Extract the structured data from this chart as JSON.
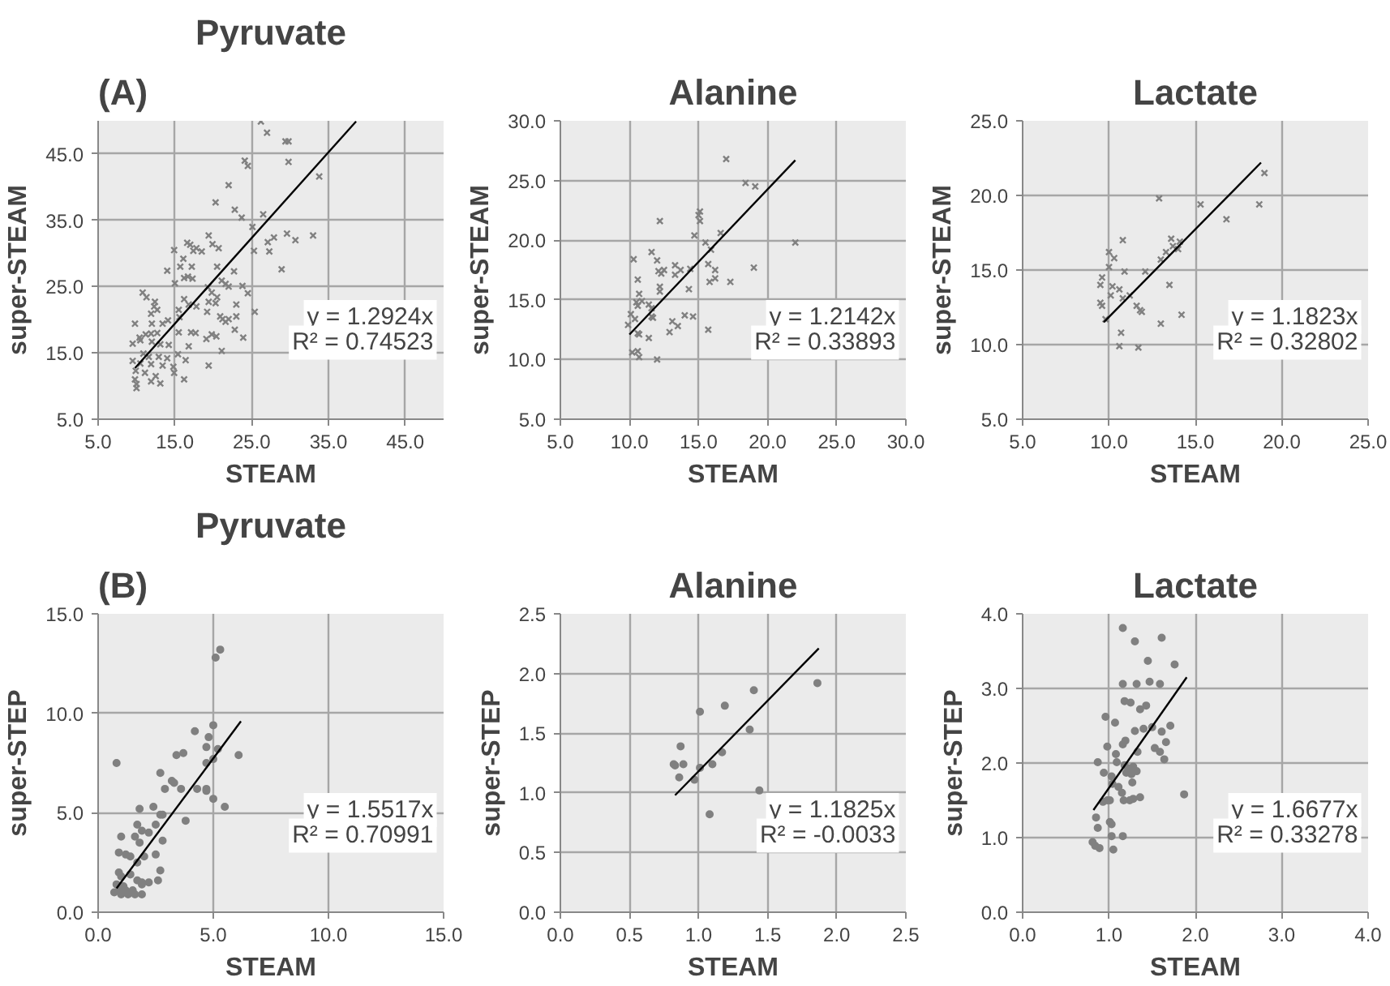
{
  "chart_data": [
    {
      "type": "scatter",
      "title": "Pyruvate",
      "xlabel": "STEAM",
      "ylabel": "super-STEAM",
      "marker": "cross",
      "grid": true,
      "xlim": [
        5,
        50
      ],
      "ylim": [
        5,
        50
      ],
      "xticks": [
        {
          "value": 5,
          "label": "5.0"
        },
        {
          "value": 15,
          "label": "15.0"
        },
        {
          "value": 25,
          "label": "25.0"
        },
        {
          "value": 35,
          "label": "35.0"
        },
        {
          "value": 45,
          "label": "45.0"
        }
      ],
      "yticks": [
        {
          "value": 5,
          "label": "5.0"
        },
        {
          "value": 15,
          "label": "15.0"
        },
        {
          "value": 25,
          "label": "25.0"
        },
        {
          "value": 35,
          "label": "35.0"
        },
        {
          "value": 45,
          "label": "45.0"
        }
      ],
      "annotations": [
        "(A)",
        "y = 1.2924x\nR² = 0.74523"
      ],
      "series": [
        {
          "color": "#808080",
          "x": [
            26.2,
            27.0,
            29.4,
            29.8,
            24.1,
            24.5,
            29.8,
            33.8,
            22.0,
            20.3,
            22.8,
            23.7,
            26.5,
            25.1,
            19.4,
            29.6,
            27.9,
            27.1,
            30.7,
            33.0,
            16.6,
            17.0,
            17.8,
            18.5,
            17.4,
            19.9,
            20.7,
            14.9,
            25.3,
            27.3,
            16.1,
            28.9,
            15.7,
            17.2,
            20.5,
            14.0,
            22.7,
            16.2,
            16.7,
            17.3,
            15.0,
            21.1,
            21.6,
            22.0,
            23.8,
            24.5,
            19.3,
            19.8,
            20.5,
            10.8,
            11.3,
            12.4,
            12.3,
            23.0,
            25.4,
            16.2,
            16.8,
            17.8,
            19.4,
            20.3,
            19.2,
            12.7,
            11.9,
            20.9,
            21.2,
            21.6,
            22.0,
            23.0,
            15.5,
            15.6,
            14.1,
            13.4,
            12.0,
            9.8,
            22.8,
            17.1,
            17.7,
            15.5,
            19.8,
            20.4,
            19.1,
            23.9,
            10.4,
            11.2,
            11.9,
            12.7,
            9.5,
            10.5,
            12.0,
            13.1,
            14.2,
            16.8,
            16.4,
            21.1,
            19.4,
            10.9,
            11.6,
            12.9,
            14.0,
            15.4,
            9.5,
            10.5,
            11.9,
            13.4,
            14.8,
            9.9,
            11.1,
            12.5,
            14.9,
            16.2,
            9.8,
            10.0,
            10.0,
            11.9,
            13.1
          ],
          "values": [
            49.9,
            48.2,
            46.9,
            46.9,
            44.0,
            43.2,
            43.8,
            41.6,
            40.3,
            37.7,
            36.6,
            35.4,
            35.9,
            34.0,
            32.7,
            33.0,
            32.4,
            31.7,
            32.0,
            32.7,
            31.6,
            31.3,
            30.8,
            30.3,
            30.4,
            31.4,
            30.8,
            30.5,
            30.4,
            30.3,
            29.2,
            27.6,
            28.0,
            28.0,
            28.0,
            27.4,
            27.3,
            26.3,
            26.5,
            26.2,
            25.5,
            25.9,
            25.4,
            25.0,
            25.1,
            24.0,
            24.9,
            24.1,
            23.4,
            24.1,
            23.4,
            22.7,
            22.0,
            22.3,
            21.2,
            23.1,
            22.3,
            22.0,
            22.7,
            22.5,
            21.2,
            21.5,
            20.9,
            20.5,
            20.1,
            19.7,
            20.1,
            20.5,
            21.5,
            20.4,
            19.9,
            19.4,
            19.4,
            19.4,
            18.5,
            18.1,
            18.0,
            18.1,
            17.8,
            17.5,
            17.1,
            17.3,
            17.3,
            17.8,
            17.9,
            18.0,
            16.4,
            16.9,
            16.7,
            16.3,
            16.2,
            16.0,
            13.9,
            15.3,
            13.1,
            14.9,
            14.4,
            14.4,
            14.2,
            14.8,
            13.8,
            13.4,
            13.3,
            13.1,
            12.9,
            12.3,
            12.0,
            11.5,
            12.0,
            11.0,
            11.0,
            10.3,
            9.7,
            10.7,
            10.4
          ]
        },
        {
          "type": "line",
          "marker": "none",
          "color": "#000000",
          "x": [
            9.8,
            38.6
          ],
          "values": [
            12.7,
            49.9
          ]
        }
      ]
    },
    {
      "type": "scatter",
      "title": "Alanine",
      "xlabel": "STEAM",
      "ylabel": "super-STEAM",
      "marker": "cross",
      "grid": true,
      "xlim": [
        5,
        30
      ],
      "ylim": [
        5,
        30
      ],
      "xticks": [
        {
          "value": 5,
          "label": "5.0"
        },
        {
          "value": 10,
          "label": "10.0"
        },
        {
          "value": 15,
          "label": "15.0"
        },
        {
          "value": 20,
          "label": "20.0"
        },
        {
          "value": 25,
          "label": "25.0"
        },
        {
          "value": 30,
          "label": "30.0"
        }
      ],
      "yticks": [
        {
          "value": 5,
          "label": "5.0"
        },
        {
          "value": 10,
          "label": "10.0"
        },
        {
          "value": 15,
          "label": "15.0"
        },
        {
          "value": 20,
          "label": "20.0"
        },
        {
          "value": 25,
          "label": "25.0"
        },
        {
          "value": 30,
          "label": "30.0"
        }
      ],
      "annotations": [
        "y = 1.2142x\nR² = 0.33893"
      ],
      "series": [
        {
          "color": "#808080",
          "x": [
            17.0,
            18.4,
            19.1,
            12.2,
            15.1,
            15.0,
            15.1,
            14.7,
            16.6,
            15.5,
            22.0,
            15.9,
            11.6,
            10.3,
            12.0,
            15.7,
            13.3,
            13.7,
            14.4,
            19.0,
            12.1,
            12.5,
            12.3,
            16.2,
            13.3,
            16.2,
            15.8,
            17.3,
            10.6,
            12.2,
            12.2,
            14.3,
            10.7,
            10.5,
            10.9,
            10.6,
            11.4,
            11.6,
            10.1,
            10.4,
            11.6,
            11.7,
            14.0,
            14.6,
            13.1,
            13.5,
            12.9,
            15.7,
            10.6,
            10.7,
            9.9,
            11.4,
            10.2,
            10.6,
            10.7,
            12.0
          ],
          "values": [
            26.8,
            24.8,
            24.5,
            21.6,
            22.4,
            22.1,
            21.6,
            20.4,
            20.6,
            19.8,
            19.8,
            19.2,
            19.0,
            18.4,
            18.3,
            18.0,
            17.9,
            17.5,
            17.6,
            17.7,
            17.4,
            17.5,
            17.2,
            17.5,
            17.1,
            16.8,
            16.5,
            16.5,
            16.7,
            16.1,
            15.7,
            15.9,
            15.5,
            14.8,
            14.9,
            14.5,
            14.6,
            14.3,
            13.8,
            13.4,
            13.6,
            13.5,
            13.7,
            13.6,
            13.2,
            12.8,
            12.3,
            12.5,
            12.2,
            12.1,
            12.9,
            11.8,
            10.6,
            10.7,
            10.2,
            10.0
          ]
        },
        {
          "type": "line",
          "marker": "none",
          "color": "#000000",
          "x": [
            10.0,
            22.0
          ],
          "values": [
            12.1,
            26.7
          ]
        }
      ]
    },
    {
      "type": "scatter",
      "title": "Lactate",
      "xlabel": "STEAM",
      "ylabel": "super-STEAM",
      "marker": "cross",
      "grid": true,
      "xlim": [
        5,
        25
      ],
      "ylim": [
        5,
        25
      ],
      "xticks": [
        {
          "value": 5,
          "label": "5.0"
        },
        {
          "value": 10,
          "label": "10.0"
        },
        {
          "value": 15,
          "label": "15.0"
        },
        {
          "value": 20,
          "label": "20.0"
        },
        {
          "value": 25,
          "label": "25.0"
        }
      ],
      "yticks": [
        {
          "value": 5,
          "label": "5.0"
        },
        {
          "value": 10,
          "label": "10.0"
        },
        {
          "value": 15,
          "label": "15.0"
        },
        {
          "value": 20,
          "label": "20.0"
        },
        {
          "value": 25,
          "label": "25.0"
        }
      ],
      "annotations": [
        "y = 1.1823x\nR² = 0.32802"
      ],
      "series": [
        {
          "color": "#808080",
          "x": [
            19.0,
            12.9,
            15.3,
            18.7,
            16.8,
            10.8,
            13.6,
            13.7,
            14.1,
            14.0,
            13.3,
            13.0,
            10.0,
            10.3,
            10.0,
            10.9,
            12.1,
            9.6,
            9.5,
            13.5,
            10.2,
            10.6,
            10.1,
            10.8,
            11.2,
            9.5,
            9.6,
            11.6,
            11.8,
            11.9,
            14.2,
            9.8,
            13.0,
            10.7,
            10.6,
            11.7
          ],
          "values": [
            21.5,
            19.8,
            19.4,
            19.4,
            18.4,
            17.0,
            17.1,
            16.6,
            16.9,
            16.4,
            16.2,
            15.7,
            16.2,
            15.8,
            15.2,
            14.9,
            14.9,
            14.5,
            14.0,
            14.0,
            13.9,
            13.7,
            13.3,
            13.1,
            13.3,
            12.8,
            12.6,
            12.6,
            12.3,
            12.2,
            12.0,
            11.7,
            11.4,
            10.8,
            9.9,
            9.8
          ]
        },
        {
          "type": "line",
          "marker": "none",
          "color": "#000000",
          "x": [
            9.7,
            18.8
          ],
          "values": [
            11.5,
            22.2
          ]
        }
      ]
    },
    {
      "type": "scatter",
      "title": "Pyruvate",
      "xlabel": "STEAM",
      "ylabel": "super-STEP",
      "marker": "circle",
      "grid": true,
      "xlim": [
        0,
        15
      ],
      "ylim": [
        0,
        15
      ],
      "xticks": [
        {
          "value": 0,
          "label": "0.0"
        },
        {
          "value": 5,
          "label": "5.0"
        },
        {
          "value": 10,
          "label": "10.0"
        },
        {
          "value": 15,
          "label": "15.0"
        }
      ],
      "yticks": [
        {
          "value": 0,
          "label": "0.0"
        },
        {
          "value": 5,
          "label": "5.0"
        },
        {
          "value": 10,
          "label": "10.0"
        },
        {
          "value": 15,
          "label": "15.0"
        }
      ],
      "annotations": [
        "(B)",
        "y = 1.5517x\nR² = 0.70991"
      ],
      "series": [
        {
          "color": "#808080",
          "x": [
            5.3,
            5.1,
            5.0,
            4.2,
            4.8,
            4.7,
            5.2,
            5.0,
            6.1,
            3.7,
            3.4,
            4.7,
            0.8,
            2.7,
            3.2,
            3.3,
            3.6,
            4.3,
            4.7,
            4.7,
            2.9,
            5.0,
            5.5,
            2.4,
            1.8,
            2.8,
            3.8,
            2.5,
            2.7,
            1.7,
            1.9,
            2.2,
            1.0,
            1.6,
            1.8,
            2.8,
            2.5,
            2.0,
            0.9,
            1.2,
            1.4,
            1.7,
            2.7,
            2.6,
            0.9,
            1.0,
            1.4,
            1.7,
            1.9,
            0.8,
            1.1,
            1.5,
            1.9,
            2.2,
            0.7,
            1.0,
            1.3,
            1.6,
            1.9,
            0.9,
            1.2
          ],
          "values": [
            13.2,
            12.8,
            9.4,
            9.1,
            8.8,
            8.3,
            8.2,
            7.7,
            7.9,
            8.0,
            7.9,
            7.5,
            7.5,
            7.0,
            6.6,
            6.5,
            6.2,
            6.2,
            6.1,
            6.2,
            6.2,
            5.7,
            5.3,
            5.3,
            5.2,
            4.9,
            4.6,
            4.4,
            4.9,
            4.4,
            4.1,
            4.0,
            3.8,
            3.8,
            3.5,
            3.6,
            2.9,
            2.8,
            3.0,
            2.9,
            2.8,
            2.5,
            2.1,
            1.6,
            2.0,
            1.8,
            1.9,
            1.6,
            1.5,
            1.4,
            1.3,
            1.1,
            1.4,
            1.5,
            1.0,
            0.9,
            0.9,
            0.9,
            0.9,
            1.1,
            1.1
          ]
        },
        {
          "type": "line",
          "marker": "none",
          "color": "#000000",
          "x": [
            0.8,
            6.2
          ],
          "values": [
            1.2,
            9.6
          ]
        }
      ]
    },
    {
      "type": "scatter",
      "title": "Alanine",
      "xlabel": "STEAM",
      "ylabel": "super-STEP",
      "marker": "circle",
      "grid": true,
      "xlim": [
        0,
        2.5
      ],
      "ylim": [
        0,
        2.5
      ],
      "xticks": [
        {
          "value": 0,
          "label": "0.0"
        },
        {
          "value": 0.5,
          "label": "0.5"
        },
        {
          "value": 1,
          "label": "1.0"
        },
        {
          "value": 1.5,
          "label": "1.5"
        },
        {
          "value": 2,
          "label": "2.0"
        },
        {
          "value": 2.5,
          "label": "2.5"
        }
      ],
      "yticks": [
        {
          "value": 0,
          "label": "0.0"
        },
        {
          "value": 0.5,
          "label": "0.5"
        },
        {
          "value": 1,
          "label": "1.0"
        },
        {
          "value": 1.5,
          "label": "1.5"
        },
        {
          "value": 2,
          "label": "2.0"
        },
        {
          "value": 2.5,
          "label": "2.5"
        }
      ],
      "annotations": [
        "y = 1.1825x\nR² = -0.0033"
      ],
      "series": [
        {
          "color": "#808080",
          "x": [
            1.86,
            1.4,
            1.01,
            1.19,
            1.37,
            0.87,
            1.17,
            0.82,
            0.83,
            0.89,
            1.1,
            1.01,
            0.86,
            0.97,
            1.44,
            1.08
          ],
          "values": [
            1.92,
            1.86,
            1.68,
            1.73,
            1.53,
            1.39,
            1.34,
            1.24,
            1.23,
            1.24,
            1.24,
            1.21,
            1.13,
            1.11,
            1.02,
            0.82
          ]
        },
        {
          "type": "line",
          "marker": "none",
          "color": "#000000",
          "x": [
            0.83,
            1.87
          ],
          "values": [
            0.98,
            2.21
          ]
        }
      ]
    },
    {
      "type": "scatter",
      "title": "Lactate",
      "xlabel": "STEAM",
      "ylabel": "super-STEP",
      "marker": "circle",
      "grid": true,
      "xlim": [
        0,
        4
      ],
      "ylim": [
        0,
        4
      ],
      "xticks": [
        {
          "value": 0,
          "label": "0.0"
        },
        {
          "value": 1,
          "label": "1.0"
        },
        {
          "value": 2,
          "label": "2.0"
        },
        {
          "value": 3,
          "label": "3.0"
        },
        {
          "value": 4,
          "label": "4.0"
        }
      ],
      "yticks": [
        {
          "value": 0,
          "label": "0.0"
        },
        {
          "value": 1,
          "label": "1.0"
        },
        {
          "value": 2,
          "label": "2.0"
        },
        {
          "value": 3,
          "label": "3.0"
        },
        {
          "value": 4,
          "label": "4.0"
        }
      ],
      "annotations": [
        "y = 1.6677x\nR² = 0.33278"
      ],
      "series": [
        {
          "color": "#808080",
          "x": [
            1.16,
            1.61,
            1.3,
            1.45,
            1.76,
            1.16,
            1.32,
            1.47,
            1.59,
            1.18,
            1.25,
            1.43,
            1.36,
            0.96,
            1.07,
            1.71,
            1.4,
            1.5,
            1.3,
            1.61,
            1.19,
            1.16,
            1.66,
            0.98,
            1.53,
            1.59,
            1.08,
            1.33,
            1.64,
            0.87,
            1.09,
            1.18,
            1.23,
            1.28,
            1.32,
            0.94,
            1.03,
            1.2,
            1.26,
            1.27,
            1.87,
            1.04,
            1.11,
            1.15,
            1.24,
            1.17,
            1.36,
            1.28,
            0.93,
            0.98,
            1.01,
            0.85,
            0.87,
            1.01,
            1.03,
            1.16,
            1.03,
            0.81,
            0.84,
            0.89,
            1.05
          ],
          "values": [
            3.81,
            3.68,
            3.63,
            3.37,
            3.32,
            3.06,
            3.06,
            3.09,
            3.06,
            2.83,
            2.81,
            2.77,
            2.72,
            2.62,
            2.54,
            2.5,
            2.46,
            2.48,
            2.43,
            2.42,
            2.3,
            2.25,
            2.28,
            2.22,
            2.2,
            2.15,
            2.12,
            2.15,
            2.05,
            2.01,
            2.01,
            1.97,
            1.93,
            1.95,
            1.89,
            1.87,
            1.82,
            1.87,
            1.85,
            1.74,
            1.58,
            1.72,
            1.68,
            1.6,
            1.5,
            1.5,
            1.54,
            1.52,
            1.48,
            1.5,
            1.5,
            1.27,
            1.13,
            1.21,
            1.18,
            1.02,
            1.02,
            0.94,
            0.89,
            0.86,
            0.84
          ]
        },
        {
          "type": "line",
          "marker": "none",
          "color": "#000000",
          "x": [
            0.82,
            1.9
          ],
          "values": [
            1.37,
            3.15
          ]
        }
      ]
    }
  ]
}
